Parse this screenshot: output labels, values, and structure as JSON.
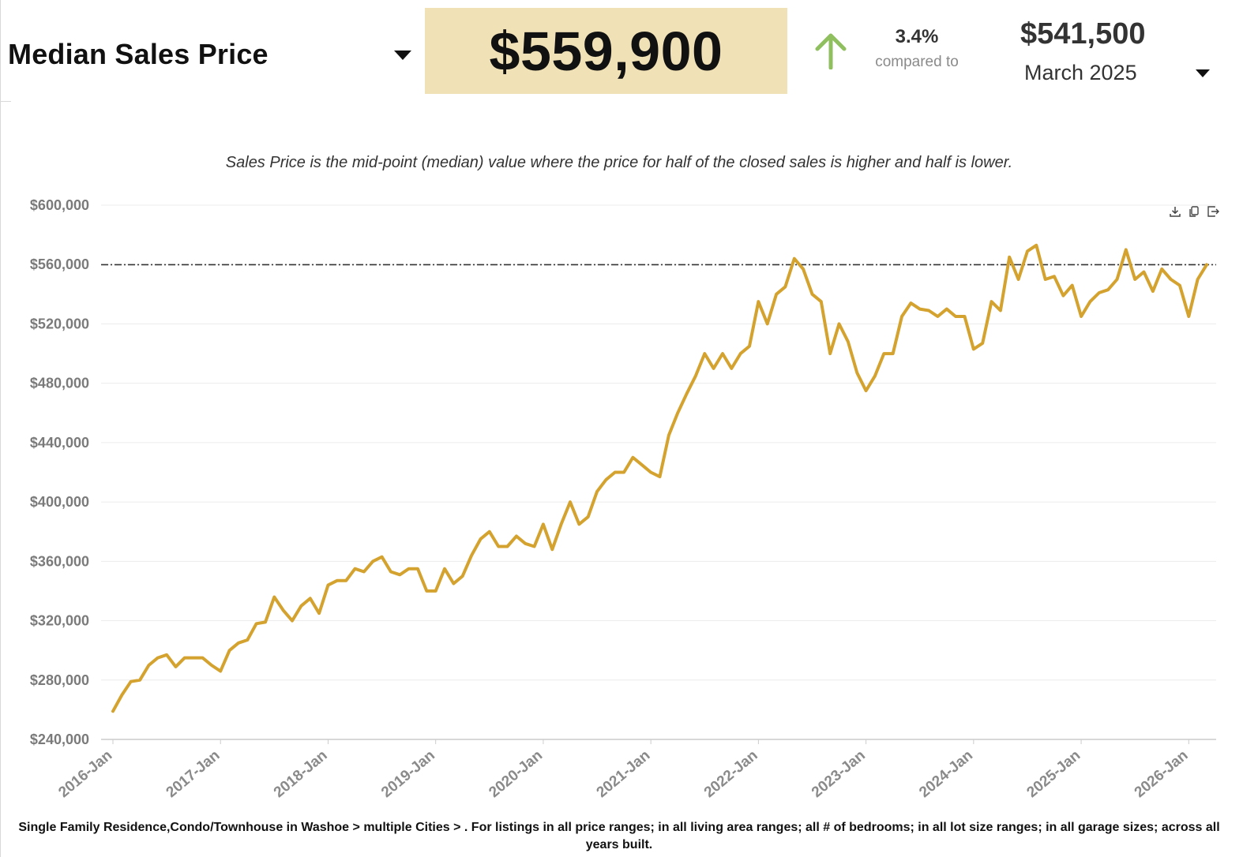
{
  "header": {
    "metric_title": "Median Sales Price",
    "current_value": "$559,900",
    "change_percent": "3.4%",
    "compared_to_label": "compared to",
    "compare_value": "$541,500",
    "compare_date": "March 2025"
  },
  "icons": {
    "change_direction": "up-arrow-icon",
    "toolbar": [
      "download-icon",
      "copy-icon",
      "export-icon"
    ]
  },
  "colors": {
    "line": "#d4a22e",
    "value_box": "#f1e1b6",
    "up_arrow": "#8fbf5f",
    "reference_line": "#333333"
  },
  "description": "Sales Price is the mid-point (median) value where the price for half of the closed sales is higher and half is lower.",
  "footnote": "Single Family Residence,Condo/Townhouse in Washoe > multiple Cities > . For listings in all price ranges; in all living area ranges; all # of bedrooms; in all lot size ranges; in all garage sizes; across all years built.",
  "chart_data": {
    "type": "line",
    "title": "",
    "xlabel": "",
    "ylabel": "",
    "ylim": [
      240000,
      600000
    ],
    "y_ticks": [
      600000,
      560000,
      520000,
      480000,
      440000,
      400000,
      360000,
      320000,
      280000,
      240000
    ],
    "y_tick_labels": [
      "$600,000",
      "$560,000",
      "$520,000",
      "$480,000",
      "$440,000",
      "$400,000",
      "$360,000",
      "$320,000",
      "$280,000",
      "$240,000"
    ],
    "x_tick_labels": [
      "2016-Jan",
      "2017-Jan",
      "2018-Jan",
      "2019-Jan",
      "2020-Jan",
      "2021-Jan",
      "2022-Jan",
      "2023-Jan",
      "2024-Jan",
      "2025-Jan",
      "2026-Jan"
    ],
    "x_start": "2016-Jan",
    "x_end": "2026-Mar",
    "reference_line": 559900,
    "grid": true,
    "series": [
      {
        "values": [
          259000,
          270000,
          279000,
          280000,
          290000,
          295000,
          297000,
          289000,
          295000,
          295000,
          295000,
          290000,
          286000,
          300000,
          305000,
          307000,
          318000,
          319000,
          336000,
          327000,
          320000,
          330000,
          335000,
          325000,
          344000,
          347000,
          347000,
          355000,
          353000,
          360000,
          363000,
          353000,
          351000,
          355000,
          355000,
          340000,
          340000,
          355000,
          345000,
          350000,
          364000,
          375000,
          380000,
          370000,
          370000,
          377000,
          372000,
          370000,
          385000,
          368000,
          385000,
          400000,
          385000,
          390000,
          407000,
          415000,
          420000,
          420000,
          430000,
          425000,
          420000,
          417000,
          445000,
          460000,
          473000,
          485000,
          500000,
          490000,
          500000,
          490000,
          500000,
          505000,
          535000,
          520000,
          540000,
          545000,
          564000,
          557000,
          540000,
          535000,
          500000,
          520000,
          508000,
          487000,
          475000,
          485000,
          500000,
          500000,
          525000,
          534000,
          530000,
          529000,
          525000,
          530000,
          525000,
          525000,
          503000,
          507000,
          535000,
          529000,
          565000,
          550000,
          569000,
          573000,
          550000,
          552000,
          539000,
          546000,
          525000,
          535000,
          541000,
          543000,
          550000,
          570000,
          550000,
          555000,
          542000,
          557000,
          550000,
          546000,
          525000,
          550000,
          559900
        ]
      }
    ]
  }
}
